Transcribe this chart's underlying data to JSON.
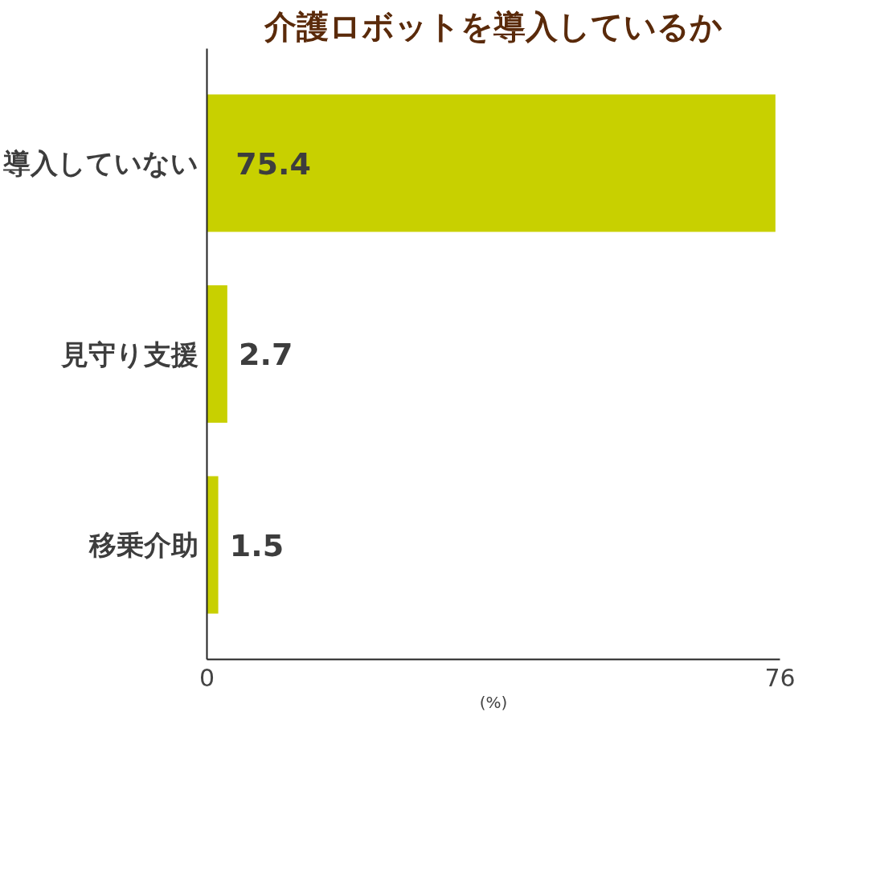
{
  "chart_data": {
    "type": "bar",
    "orientation": "horizontal",
    "title": "介護ロボットを導入しているか",
    "categories": [
      "導入していない",
      "見守り支援",
      "移乗介助"
    ],
    "values": [
      75.4,
      2.7,
      1.5
    ],
    "color": "#c8d000",
    "xlim": [
      0,
      76
    ],
    "xticks": [
      0,
      76
    ],
    "xlabel": "(%)",
    "data_labels": true,
    "grid": false
  }
}
